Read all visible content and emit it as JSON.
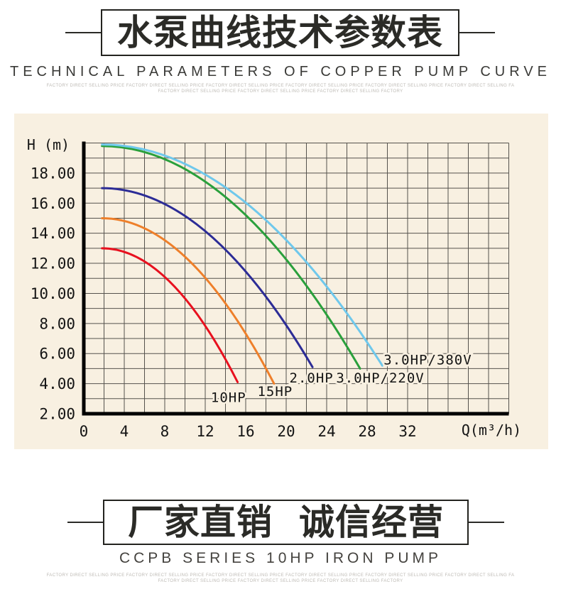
{
  "page": {
    "background": "#ffffff",
    "panel_background": "#f8f0e1"
  },
  "header": {
    "title": "水泵曲线技术参数表",
    "subtitle": "TECHNICAL PARAMETERS OF COPPER PUMP CURVE",
    "fineprint_line1": "FACTORY DIRECT SELLING PRICE FACTORY DIRECT SELLING PRICE FACTORY DIRECT SELLING PRICE FACTORY DIRECT SELLING PRICE FACTORY DIRECT SELLING PRICE FACTORY DIRECT SELLING FA",
    "fineprint_line2": "FACTORY DIRECT SELLING PRICE FACTORY DIRECT SELLING PRICE FACTORY DIRECT SELLING FACTORY"
  },
  "footer": {
    "title": "厂家直销 诚信经营",
    "subtitle": "CCPB SERIES 10HP IRON PUMP",
    "fineprint_line1": "FACTORY DIRECT SELLING PRICE FACTORY DIRECT SELLING PRICE FACTORY DIRECT SELLING PRICE FACTORY DIRECT SELLING PRICE FACTORY DIRECT SELLING PRICE FACTORY DIRECT SELLING FA",
    "fineprint_line2": "FACTORY DIRECT SELLING PRICE FACTORY DIRECT SELLING PRICE FACTORY DIRECT SELLING FACTORY"
  },
  "chart_data": {
    "type": "line",
    "title": "",
    "xlabel": "Q(m³/h)",
    "ylabel": "H (m)",
    "xlim": [
      0,
      42
    ],
    "ylim": [
      2,
      20
    ],
    "x_ticks": [
      0,
      4,
      8,
      12,
      16,
      20,
      24,
      28,
      32
    ],
    "y_ticks": [
      {
        "value": 18,
        "label": "18.00"
      },
      {
        "value": 16,
        "label": "16.00"
      },
      {
        "value": 14,
        "label": "14.00"
      },
      {
        "value": 12,
        "label": "12.00"
      },
      {
        "value": 10,
        "label": "10.00"
      },
      {
        "value": 8,
        "label": "8.00"
      },
      {
        "value": 6,
        "label": "6.00"
      },
      {
        "value": 4,
        "label": "4.00"
      },
      {
        "value": 2,
        "label": "2.00"
      }
    ],
    "grid": {
      "show": true,
      "x_step": 2,
      "y_step": 1,
      "color": "#55524d"
    },
    "axis_color": "#000000",
    "legend_position": "inline-labels-near-curve-ends",
    "series": [
      {
        "name": "10HP",
        "color": "#e8101e",
        "start": [
          1.8,
          13.0
        ],
        "end": [
          15.2,
          4.1
        ],
        "label_pos": [
          14.3,
          3.1
        ],
        "points": [
          [
            2,
            13.0
          ],
          [
            4,
            12.8
          ],
          [
            6,
            12.1
          ],
          [
            8,
            11.1
          ],
          [
            10,
            9.7
          ],
          [
            12,
            7.8
          ],
          [
            14,
            5.6
          ],
          [
            15.2,
            4.1
          ]
        ]
      },
      {
        "name": "15HP",
        "color": "#ee7f2a",
        "start": [
          1.8,
          15.0
        ],
        "end": [
          18.8,
          4.0
        ],
        "label_pos": [
          18.9,
          3.5
        ],
        "points": [
          [
            2,
            15.0
          ],
          [
            4,
            14.8
          ],
          [
            6,
            14.4
          ],
          [
            8,
            13.6
          ],
          [
            10,
            12.5
          ],
          [
            12,
            11.1
          ],
          [
            14,
            9.4
          ],
          [
            16,
            7.4
          ],
          [
            18,
            5.1
          ],
          [
            18.8,
            4.0
          ]
        ]
      },
      {
        "name": "2.0HP",
        "color": "#2c2c96",
        "start": [
          1.8,
          17.0
        ],
        "end": [
          22.6,
          5.1
        ],
        "label_pos": [
          22.5,
          4.4
        ],
        "points": [
          [
            2,
            17.0
          ],
          [
            4,
            16.9
          ],
          [
            8,
            16.0
          ],
          [
            12,
            14.2
          ],
          [
            16,
            11.5
          ],
          [
            20,
            7.9
          ],
          [
            22.6,
            5.1
          ]
        ]
      },
      {
        "name": "3.0HP/220V",
        "color": "#2aa03c",
        "start": [
          1.8,
          19.8
        ],
        "end": [
          27.3,
          5.0
        ],
        "label_pos": [
          29.3,
          4.4
        ],
        "points": [
          [
            2,
            19.8
          ],
          [
            6,
            19.4
          ],
          [
            10,
            18.3
          ],
          [
            14,
            16.5
          ],
          [
            18,
            13.9
          ],
          [
            22,
            10.6
          ],
          [
            26,
            6.5
          ],
          [
            27.3,
            5.0
          ]
        ]
      },
      {
        "name": "3.0HP/380V",
        "color": "#6fc8ec",
        "start": [
          1.8,
          19.9
        ],
        "end": [
          29.5,
          5.2
        ],
        "label_pos": [
          34.0,
          5.6
        ],
        "points": [
          [
            2,
            19.9
          ],
          [
            6,
            19.6
          ],
          [
            10,
            18.7
          ],
          [
            14,
            17.1
          ],
          [
            18,
            14.9
          ],
          [
            22,
            12.1
          ],
          [
            26,
            8.7
          ],
          [
            29.5,
            5.2
          ]
        ]
      }
    ]
  }
}
